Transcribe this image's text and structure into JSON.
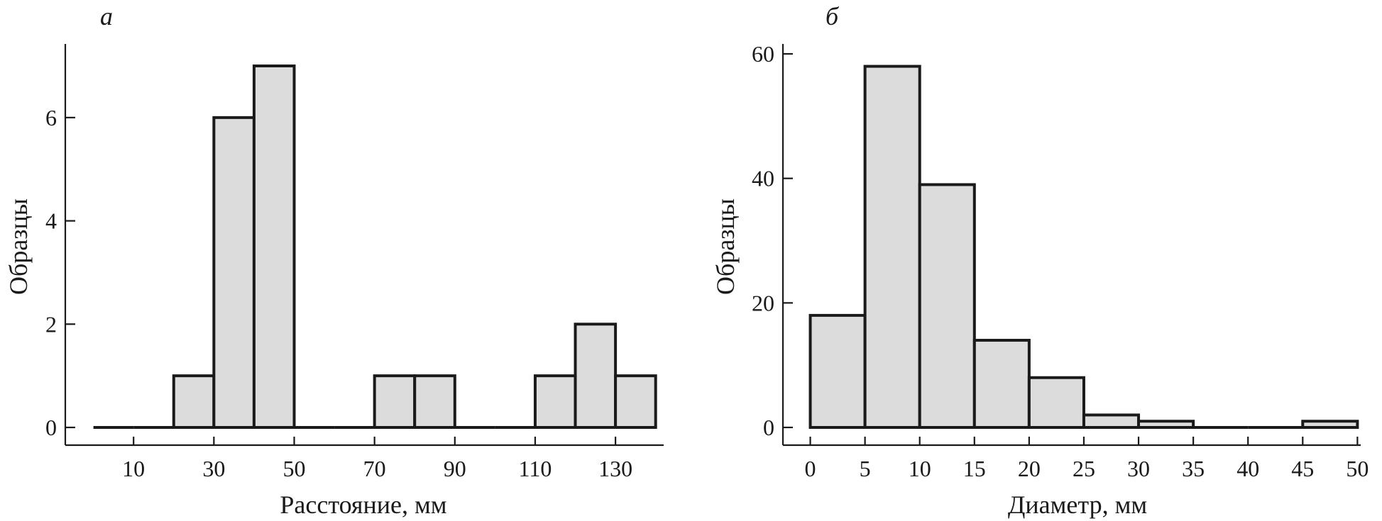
{
  "colors": {
    "bar_fill": "#dcdcdc",
    "bar_stroke": "#1a1a1a",
    "axis": "#1a1a1a"
  },
  "chart_data": [
    {
      "type": "bar",
      "panel_label": "а",
      "xlabel": "Расстояние, мм",
      "ylabel": "Образцы",
      "bin_edges": [
        0,
        10,
        20,
        30,
        40,
        50,
        60,
        70,
        80,
        90,
        100,
        110,
        120,
        130,
        140
      ],
      "values": [
        0,
        0,
        1,
        6,
        7,
        0,
        0,
        1,
        1,
        0,
        0,
        1,
        2,
        1
      ],
      "xlim": [
        -7,
        142
      ],
      "ylim": [
        0,
        7
      ],
      "xticks": [
        10,
        30,
        50,
        70,
        90,
        110,
        130
      ],
      "yticks": [
        0,
        2,
        4,
        6
      ],
      "grid": false,
      "legend": "none"
    },
    {
      "type": "bar",
      "panel_label": "б",
      "xlabel": "Диаметр, мм",
      "ylabel": "Образцы",
      "bin_edges": [
        0,
        5,
        10,
        15,
        20,
        25,
        30,
        35,
        40,
        45,
        50
      ],
      "values": [
        18,
        58,
        39,
        14,
        8,
        2,
        1,
        0,
        0,
        1
      ],
      "xlim": [
        -2.5,
        50.3
      ],
      "ylim": [
        0,
        60
      ],
      "xticks": [
        0,
        5,
        10,
        15,
        20,
        25,
        30,
        35,
        40,
        45,
        50
      ],
      "yticks": [
        0,
        20,
        40,
        60
      ],
      "grid": false,
      "legend": "none"
    }
  ]
}
